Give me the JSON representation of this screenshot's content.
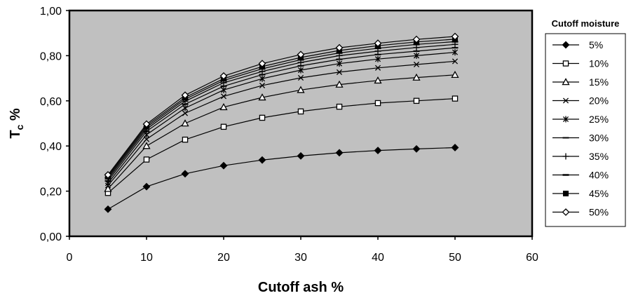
{
  "chart_data": {
    "type": "line",
    "xlabel": "Cutoff ash %",
    "ylabel": "T",
    "ylabel_sub": "c",
    "ylabel_suffix": " %",
    "xlim": [
      0,
      60
    ],
    "ylim": [
      0,
      1
    ],
    "x_ticks": [
      "0",
      "10",
      "20",
      "30",
      "40",
      "50",
      "60"
    ],
    "y_ticks": [
      "0,00",
      "0,20",
      "0,40",
      "0,60",
      "0,80",
      "1,00"
    ],
    "grid": false,
    "legend_title": "Cutoff moisture",
    "legend_position": "right",
    "plot_background": "#c0c0c0",
    "line_color": "#000000",
    "x": [
      5,
      10,
      15,
      20,
      25,
      30,
      35,
      40,
      45,
      50
    ],
    "series": [
      {
        "name": "5%",
        "marker": "diamond-filled",
        "values": [
          0.12,
          0.22,
          0.277,
          0.313,
          0.338,
          0.356,
          0.37,
          0.38,
          0.387,
          0.393
        ]
      },
      {
        "name": "10%",
        "marker": "square-open",
        "values": [
          0.192,
          0.34,
          0.428,
          0.485,
          0.525,
          0.553,
          0.574,
          0.59,
          0.6,
          0.61
        ]
      },
      {
        "name": "15%",
        "marker": "triangle-open",
        "values": [
          0.21,
          0.4,
          0.5,
          0.572,
          0.615,
          0.648,
          0.672,
          0.69,
          0.703,
          0.715
        ]
      },
      {
        "name": "20%",
        "marker": "x",
        "values": [
          0.225,
          0.43,
          0.545,
          0.62,
          0.668,
          0.702,
          0.727,
          0.746,
          0.761,
          0.775
        ]
      },
      {
        "name": "25%",
        "marker": "star",
        "values": [
          0.235,
          0.45,
          0.568,
          0.648,
          0.698,
          0.736,
          0.765,
          0.785,
          0.8,
          0.815
        ]
      },
      {
        "name": "30%",
        "marker": "dash",
        "values": [
          0.245,
          0.465,
          0.585,
          0.665,
          0.716,
          0.755,
          0.784,
          0.805,
          0.82,
          0.835
        ]
      },
      {
        "name": "35%",
        "marker": "plus",
        "values": [
          0.253,
          0.475,
          0.598,
          0.68,
          0.73,
          0.77,
          0.8,
          0.82,
          0.836,
          0.85
        ]
      },
      {
        "name": "40%",
        "marker": "line",
        "values": [
          0.26,
          0.483,
          0.607,
          0.69,
          0.742,
          0.782,
          0.812,
          0.833,
          0.85,
          0.862
        ]
      },
      {
        "name": "45%",
        "marker": "square-filled",
        "values": [
          0.266,
          0.49,
          0.615,
          0.698,
          0.752,
          0.792,
          0.823,
          0.844,
          0.861,
          0.873
        ]
      },
      {
        "name": "50%",
        "marker": "diamond-open",
        "values": [
          0.272,
          0.497,
          0.625,
          0.71,
          0.765,
          0.805,
          0.835,
          0.855,
          0.872,
          0.885
        ]
      }
    ]
  }
}
